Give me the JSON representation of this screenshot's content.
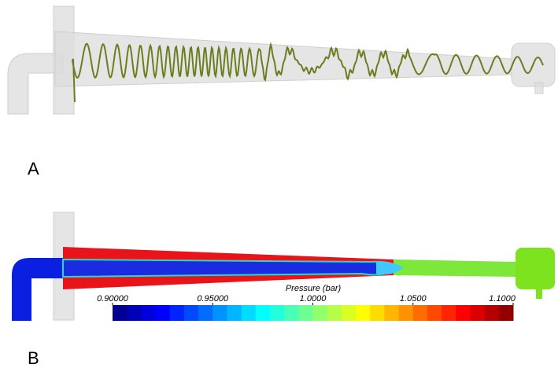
{
  "panels": [
    {
      "label": "A"
    },
    {
      "label": "B",
      "colorbar": {
        "title": "Pressure (bar)",
        "range": [
          0.9,
          1.1
        ],
        "ticks": [
          {
            "value": 0.9,
            "label": "0.90000"
          },
          {
            "value": 0.95,
            "label": "0.95000"
          },
          {
            "value": 1.0,
            "label": "1.0000"
          },
          {
            "value": 1.05,
            "label": "1.0500"
          },
          {
            "value": 1.1,
            "label": "1.1000"
          }
        ]
      }
    }
  ]
}
